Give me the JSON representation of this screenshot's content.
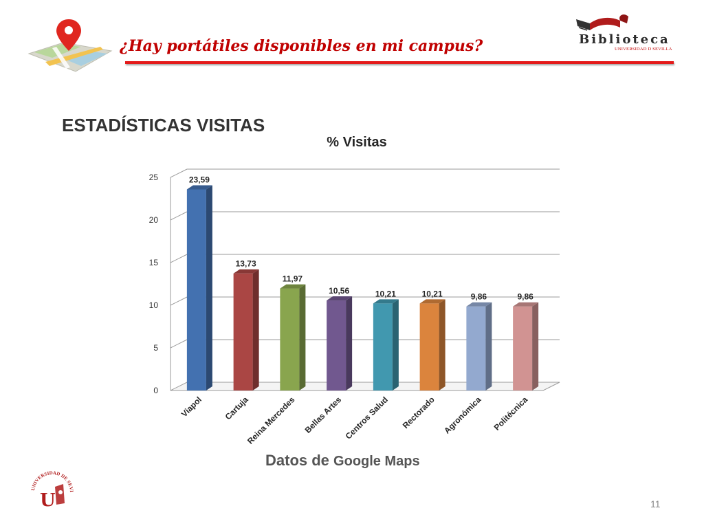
{
  "header": {
    "title": "¿Hay portátiles disponibles en mi campus?",
    "brand_name": "Biblioteca",
    "brand_subtitle": "UNIVERSIDAD D SEVILLA"
  },
  "section_title": "ESTADÍSTICAS VISITAS",
  "source_note": {
    "prefix": "Datos de",
    "source": "Google Maps"
  },
  "page_number": "11",
  "university_seal_text": "UNIVERSIDAD DE SEVILLA",
  "chart_data": {
    "type": "bar",
    "title": "% Visitas",
    "categories": [
      "Viapol",
      "Cartuja",
      "Reina Mercedes",
      "Bellas Artes",
      "Centros Salud",
      "Rectorado",
      "Agronómica",
      "Politécnica"
    ],
    "values": [
      23.59,
      13.73,
      11.97,
      10.56,
      10.21,
      10.21,
      9.86,
      9.86
    ],
    "value_labels": [
      "23,59",
      "13,73",
      "11,97",
      "10,56",
      "10,21",
      "10,21",
      "9,86",
      "9,86"
    ],
    "colors": [
      "#4371b0",
      "#aa4644",
      "#89a54e",
      "#71588f",
      "#4198af",
      "#db843d",
      "#93a9cf",
      "#d19392"
    ],
    "ylim": [
      0,
      25
    ],
    "yticks": [
      0,
      5,
      10,
      15,
      20,
      25
    ],
    "grid": true,
    "style": "3d-columns",
    "label_rotation": -45
  }
}
